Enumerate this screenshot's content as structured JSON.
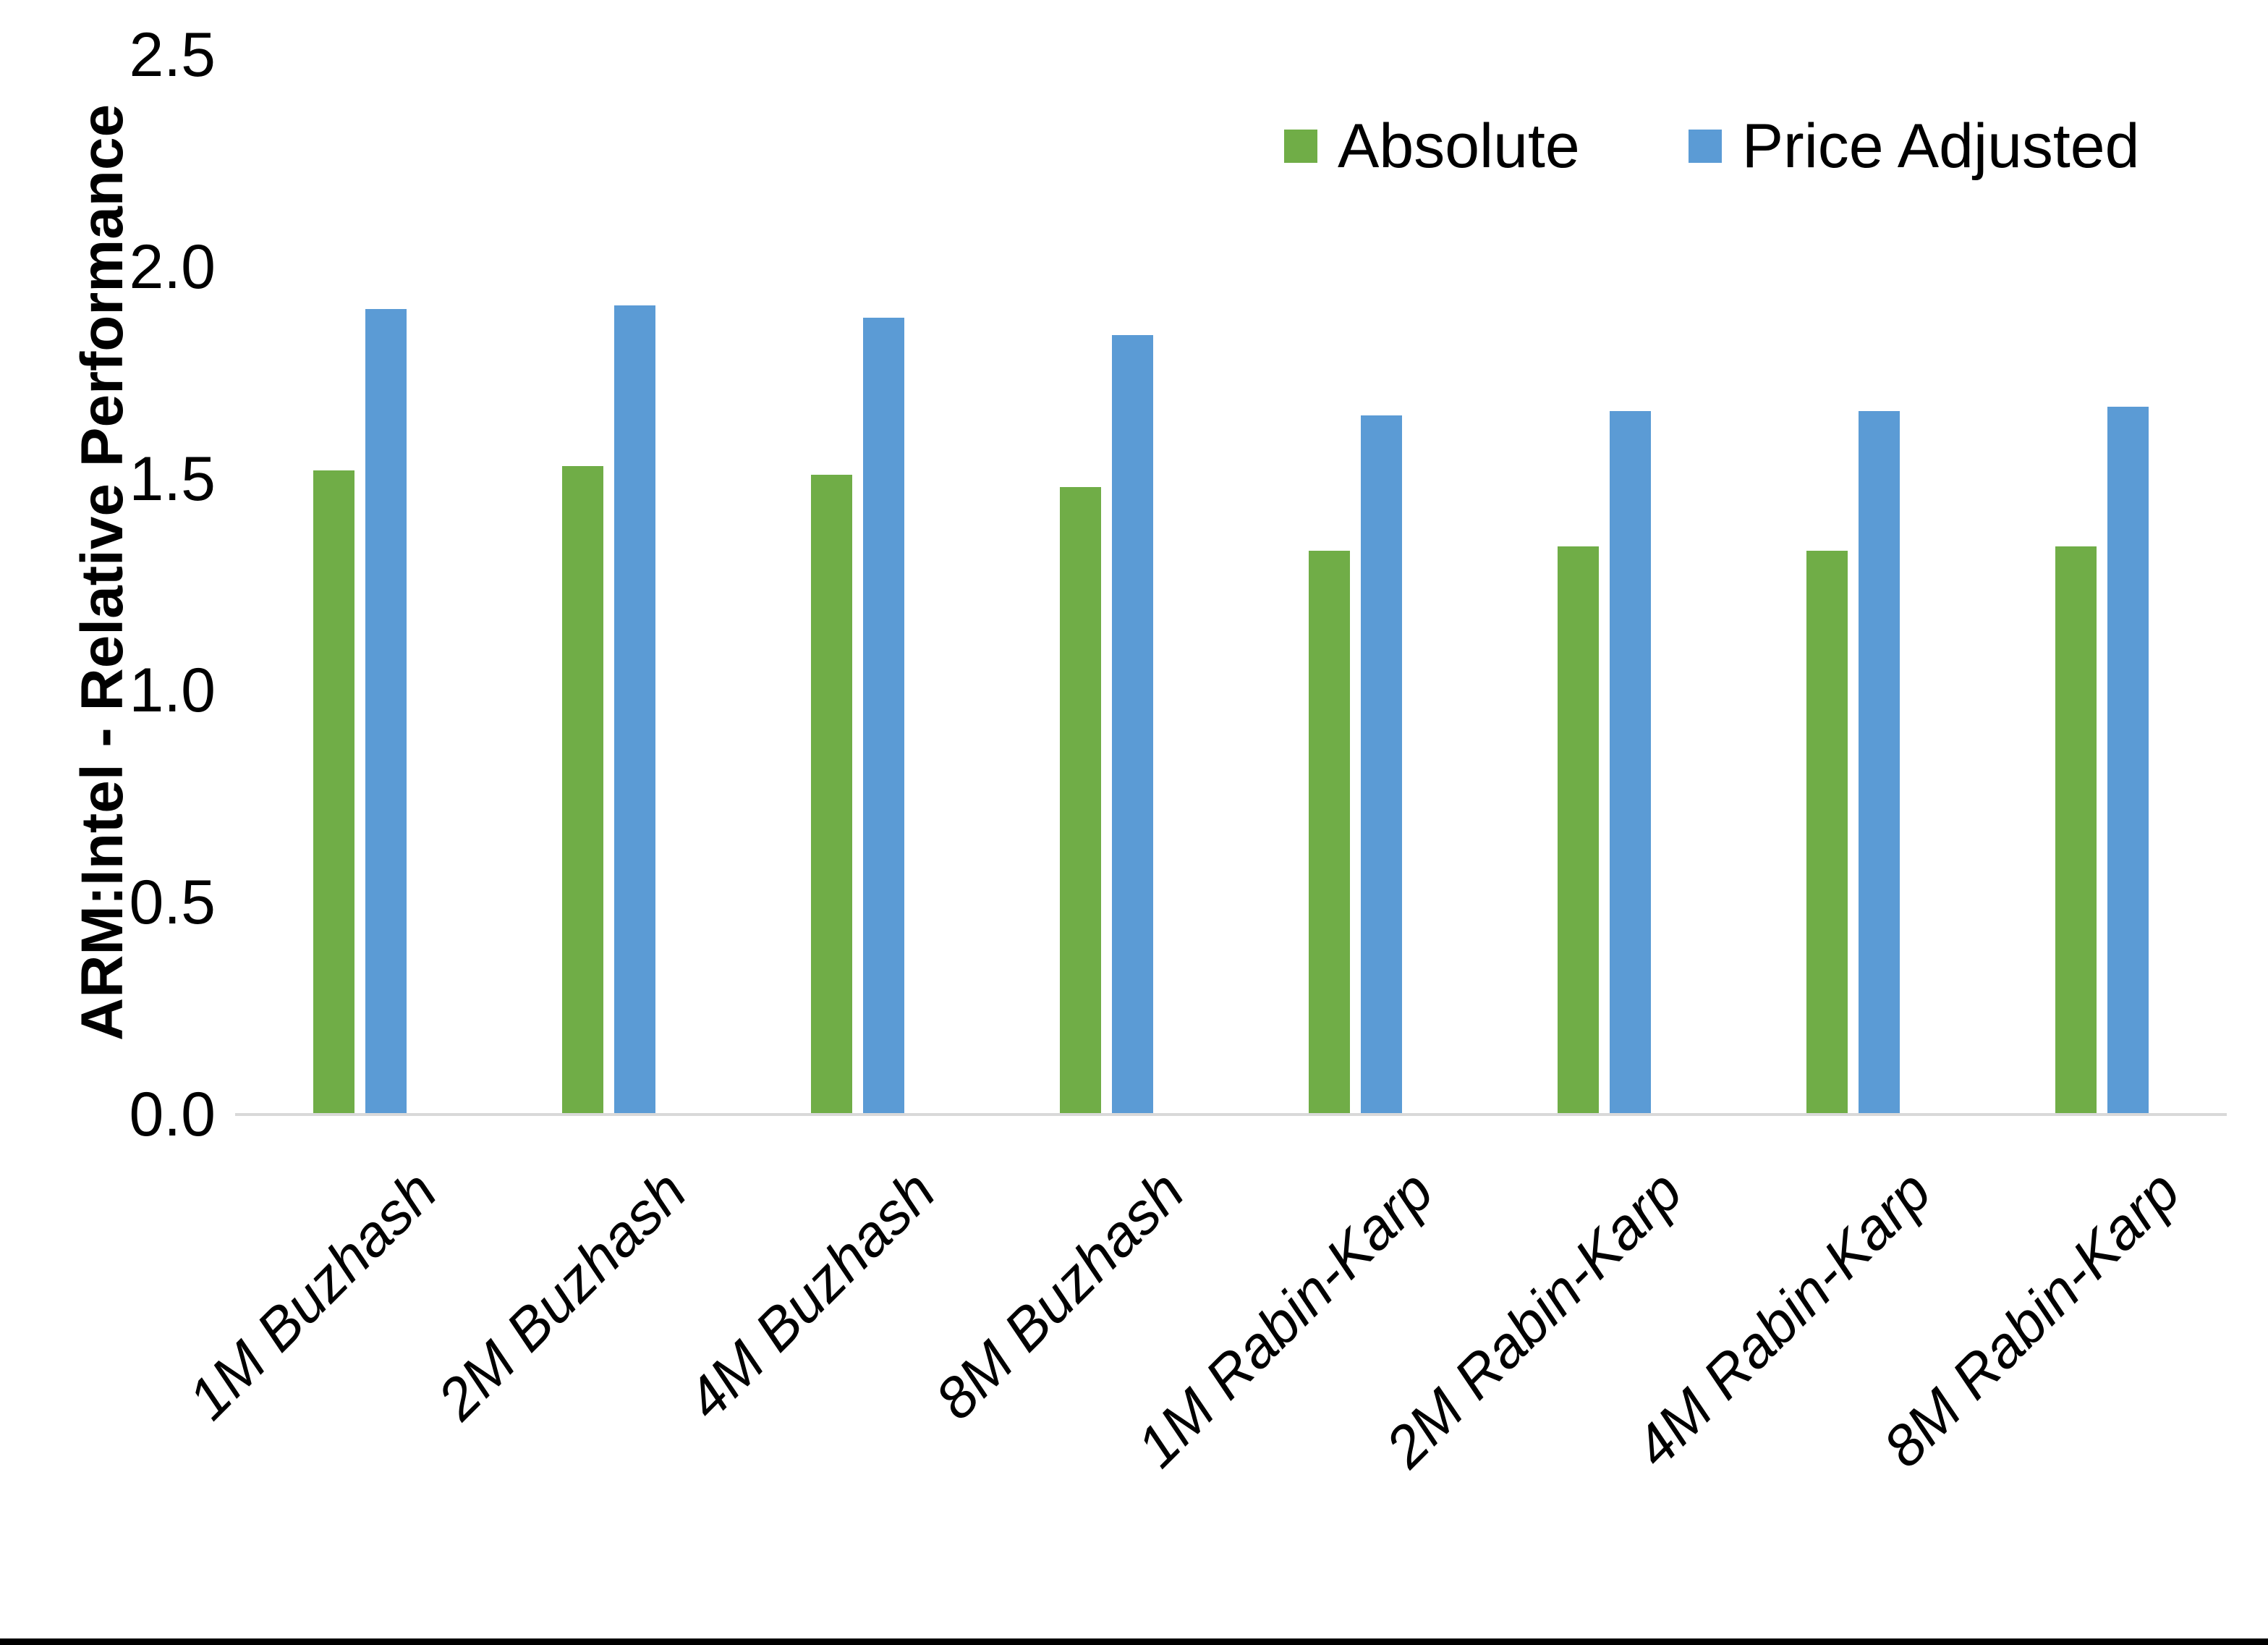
{
  "chart_data": {
    "type": "bar",
    "title": "",
    "xlabel": "",
    "ylabel": "ARM:Intel - Relative Performance",
    "ylim": [
      0,
      2.5
    ],
    "y_tick_labels": [
      "0.0",
      "0.5",
      "1.0",
      "1.5",
      "2.0",
      "2.5"
    ],
    "grid": false,
    "legend_position": "top-right",
    "axis_line_color": "#d9d9d9",
    "text_color": "#000000",
    "categories": [
      "1M Buzhash",
      "2M Buzhash",
      "4M Buzhash",
      "8M Buzhash",
      "1M Rabin-Karp",
      "2M Rabin-Karp",
      "4M Rabin-Karp",
      "8M Rabin-Karp"
    ],
    "series": [
      {
        "name": "Absolute",
        "color": "#70AD47",
        "values": [
          1.52,
          1.53,
          1.51,
          1.48,
          1.33,
          1.34,
          1.33,
          1.34
        ]
      },
      {
        "name": "Price Adjusted",
        "color": "#5B9BD5",
        "values": [
          1.9,
          1.91,
          1.88,
          1.84,
          1.65,
          1.66,
          1.66,
          1.67
        ]
      }
    ]
  }
}
